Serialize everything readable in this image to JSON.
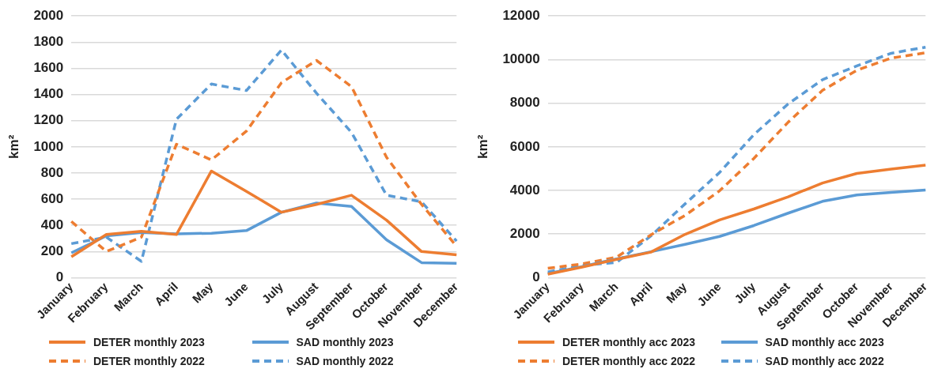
{
  "chart_data": [
    {
      "type": "line",
      "categories": [
        "January",
        "February",
        "March",
        "April",
        "May",
        "June",
        "July",
        "August",
        "September",
        "October",
        "November",
        "December"
      ],
      "ylabel": "km²",
      "ylim": [
        0,
        2000
      ],
      "yticks": [
        0,
        200,
        400,
        600,
        800,
        1000,
        1200,
        1400,
        1600,
        1800,
        2000
      ],
      "grid": "y",
      "legend": "bottom",
      "marker": "none",
      "series": [
        {
          "name": "DETER monthly 2023",
          "color": "#ed7d31",
          "line_style": "solid",
          "values": [
            160,
            330,
            355,
            330,
            815,
            660,
            500,
            560,
            630,
            440,
            200,
            175
          ]
        },
        {
          "name": "SAD monthly 2023",
          "color": "#5b9bd5",
          "line_style": "solid",
          "values": [
            190,
            320,
            345,
            335,
            340,
            360,
            500,
            570,
            545,
            290,
            115,
            110
          ]
        },
        {
          "name": "DETER monthly 2022",
          "color": "#ed7d31",
          "line_style": "dashed",
          "values": [
            430,
            200,
            310,
            1020,
            900,
            1120,
            1490,
            1660,
            1460,
            920,
            560,
            240
          ]
        },
        {
          "name": "SAD monthly 2022",
          "color": "#5b9bd5",
          "line_style": "dashed",
          "values": [
            260,
            310,
            125,
            1210,
            1480,
            1430,
            1740,
            1410,
            1110,
            630,
            580,
            280
          ]
        }
      ]
    },
    {
      "type": "line",
      "categories": [
        "January",
        "February",
        "March",
        "April",
        "May",
        "June",
        "July",
        "August",
        "September",
        "October",
        "November",
        "December"
      ],
      "ylabel": "km²",
      "ylim": [
        0,
        12000
      ],
      "yticks": [
        0,
        2000,
        4000,
        6000,
        8000,
        10000,
        12000
      ],
      "grid": "y",
      "legend": "bottom",
      "marker": "none",
      "series": [
        {
          "name": "DETER monthly acc 2023",
          "color": "#ed7d31",
          "line_style": "solid",
          "values": [
            160,
            490,
            840,
            1170,
            1990,
            2650,
            3150,
            3710,
            4340,
            4780,
            4980,
            5160
          ]
        },
        {
          "name": "SAD monthly acc 2023",
          "color": "#5b9bd5",
          "line_style": "solid",
          "values": [
            190,
            510,
            860,
            1190,
            1530,
            1890,
            2390,
            2960,
            3500,
            3790,
            3910,
            4020
          ]
        },
        {
          "name": "DETER monthly acc 2022",
          "color": "#ed7d31",
          "line_style": "dashed",
          "values": [
            430,
            630,
            940,
            1960,
            2860,
            3980,
            5470,
            7130,
            8590,
            9510,
            10070,
            10310
          ]
        },
        {
          "name": "SAD monthly acc 2022",
          "color": "#5b9bd5",
          "line_style": "dashed",
          "values": [
            260,
            570,
            700,
            1910,
            3390,
            4820,
            6560,
            7970,
            9080,
            9710,
            10290,
            10570
          ]
        }
      ]
    }
  ]
}
